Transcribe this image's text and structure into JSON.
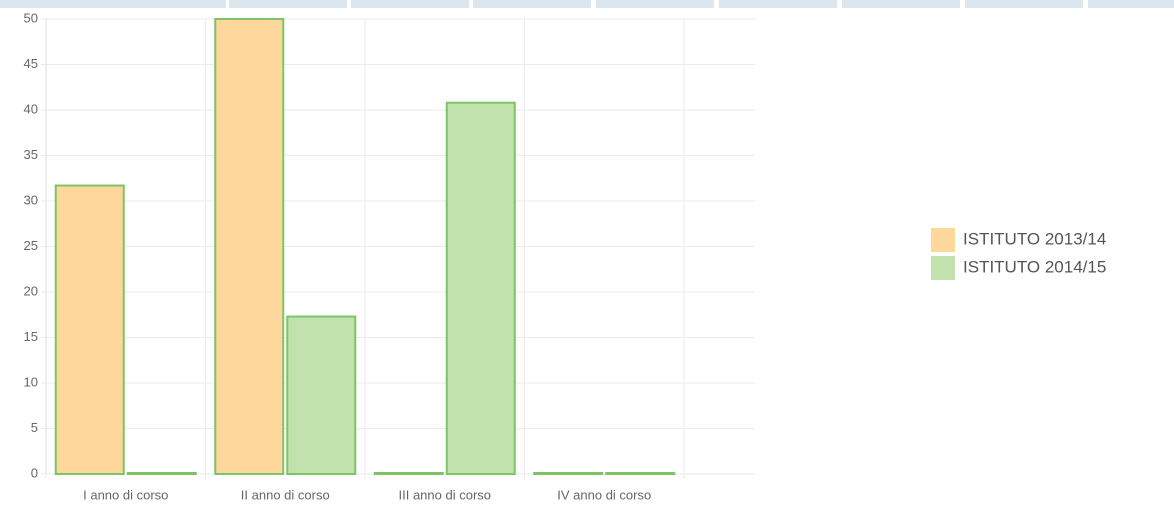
{
  "chart_data": {
    "type": "bar",
    "categories": [
      "I anno di corso",
      "II anno di corso",
      "III anno di corso",
      "IV anno di corso"
    ],
    "series": [
      {
        "name": "ISTITUTO 2013/14",
        "color": "#fdd79b",
        "values": [
          31.7,
          50,
          0,
          0
        ]
      },
      {
        "name": "ISTITUTO 2014/15",
        "color": "#c2e2ad",
        "values": [
          0,
          17.3,
          40.8,
          0
        ]
      }
    ],
    "border_color": "#7cc466",
    "ylim": [
      0,
      50
    ],
    "yticks": [
      0,
      5,
      10,
      15,
      20,
      25,
      30,
      35,
      40,
      45,
      50
    ],
    "grid": true,
    "legend": "right"
  }
}
